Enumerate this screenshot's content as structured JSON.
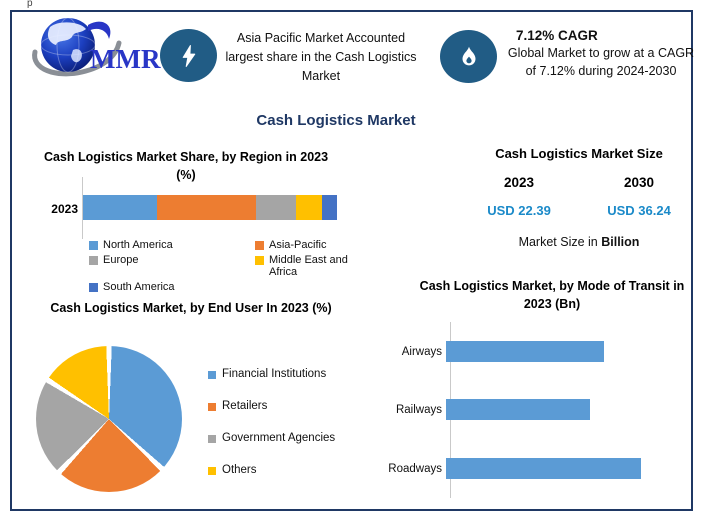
{
  "stray_mark": "p",
  "header": {
    "logo_text": "MMR",
    "highlight_text": "Asia Pacific Market Accounted largest share in the Cash Logistics Market",
    "cagr_title": "7.12% CAGR",
    "cagr_text": "Global Market to grow at a CAGR of 7.12% during 2024-2030"
  },
  "main_title": "Cash Logistics Market",
  "market_size": {
    "title": "Cash Logistics Market Size",
    "columns": [
      {
        "year": "2023",
        "value": "USD 22.39"
      },
      {
        "year": "2030",
        "value": "USD 36.24"
      }
    ],
    "note_prefix": "Market Size in ",
    "note_bold": "Billion"
  },
  "chart_data": [
    {
      "type": "bar",
      "subtype": "stacked-horizontal",
      "title": "Cash Logistics Market Share, by Region in 2023 (%)",
      "categories": [
        "2023"
      ],
      "series": [
        {
          "name": "North America",
          "color": "#5B9BD5",
          "values": [
            29
          ]
        },
        {
          "name": "Asia-Pacific",
          "color": "#ED7D31",
          "values": [
            39
          ]
        },
        {
          "name": "Europe",
          "color": "#A5A5A5",
          "values": [
            16
          ]
        },
        {
          "name": "Middle East and Africa",
          "color": "#FFC000",
          "values": [
            10
          ]
        },
        {
          "name": "South America",
          "color": "#4472C4",
          "values": [
            6
          ]
        }
      ],
      "legend_position": "bottom",
      "axis_values_shown": false,
      "note": "segment sizes estimated from bar proportions; no data labels shown"
    },
    {
      "type": "pie",
      "title": "Cash Logistics Market, by End User In 2023 (%)",
      "labels": [
        "Financial Institutions",
        "Retailers",
        "Government Agencies",
        "Others"
      ],
      "values": [
        37,
        25,
        22,
        16
      ],
      "colors": [
        "#5B9BD5",
        "#ED7D31",
        "#A5A5A5",
        "#FFC000"
      ],
      "legend_position": "right",
      "start_angle_deg": 0,
      "note": "slice percentages estimated from angles; no data labels shown"
    },
    {
      "type": "bar",
      "subtype": "horizontal",
      "title": "Cash Logistics Market, by Mode of Transit in 2023 (Bn)",
      "categories": [
        "Airways",
        "Railways",
        "Roadways"
      ],
      "values": [
        81,
        74,
        100
      ],
      "value_unit": "percent of longest bar (no axis values shown)",
      "color": "#5B9BD5",
      "grid": false
    }
  ],
  "colors": {
    "border_navy": "#1F3864",
    "title_navy": "#1F3864",
    "icon_circle_blue": "#215C85",
    "usd_value_blue": "#1B8AC9",
    "chart_blue": "#5B9BD5",
    "chart_orange": "#ED7D31",
    "chart_gray": "#A5A5A5",
    "chart_yellow": "#FFC000",
    "chart_dark_blue": "#4472C4",
    "axis_line_gray": "#C9C9C9",
    "logo_blue": "#2936C6"
  }
}
